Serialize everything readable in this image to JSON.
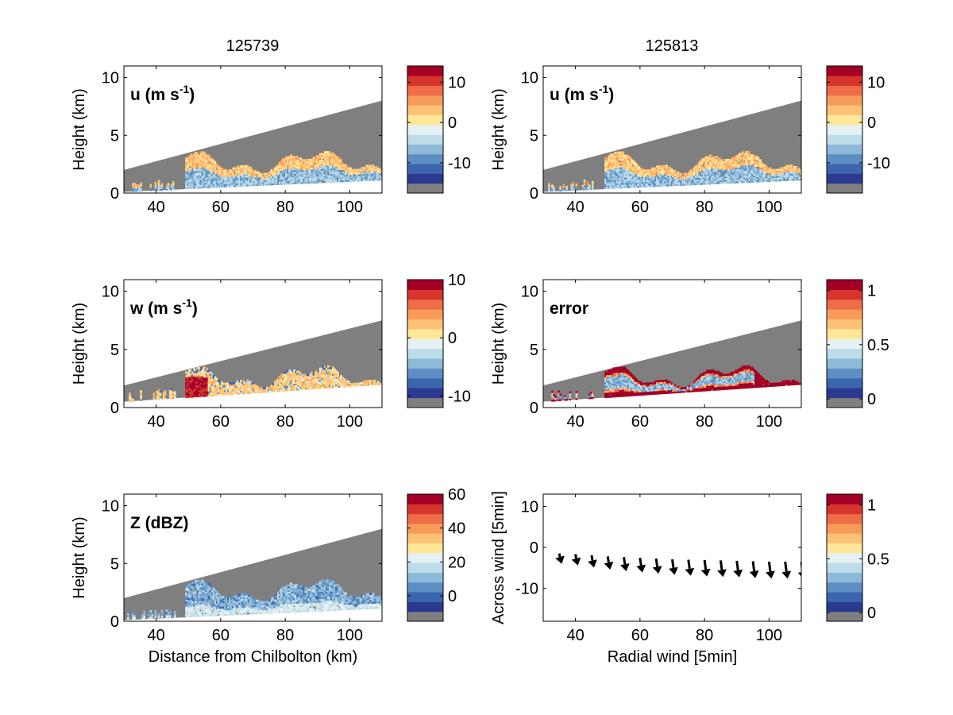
{
  "figure": {
    "column_titles": [
      "125739",
      "125813"
    ],
    "palette": [
      "#7f7f7f",
      "#2b3990",
      "#3b65ad",
      "#5d8fc4",
      "#8dbad9",
      "#bcdcea",
      "#e6f1f3",
      "#ffe79a",
      "#fdc275",
      "#f99b58",
      "#ee6c47",
      "#d5352d",
      "#a50026"
    ],
    "background_fill": "#7f7f7f"
  },
  "chart_data": [
    {
      "id": "u-left",
      "type": "heatmap",
      "column": 0,
      "row": 0,
      "label_main": "u (m s",
      "label_sup": "-1",
      "label_tail": ")",
      "ylabel": "Height (km)",
      "xlabel": "",
      "xlim": [
        30,
        110
      ],
      "ylim": [
        0,
        11
      ],
      "xticks": [
        40,
        60,
        80,
        100
      ],
      "yticks": [
        0,
        5,
        10
      ],
      "beam_top": [
        [
          30,
          2.0
        ],
        [
          110,
          8.0
        ]
      ],
      "beam_bottom": [
        [
          30,
          0.1
        ],
        [
          110,
          1.1
        ]
      ],
      "colorbar": {
        "ticks": [
          10,
          0,
          -10
        ],
        "range": [
          -17.5,
          14
        ]
      }
    },
    {
      "id": "u-right",
      "type": "heatmap",
      "column": 1,
      "row": 0,
      "label_main": "u (m s",
      "label_sup": "-1",
      "label_tail": ")",
      "ylabel": "Height (km)",
      "xlabel": "",
      "xlim": [
        30,
        110
      ],
      "ylim": [
        0,
        11
      ],
      "xticks": [
        40,
        60,
        80,
        100
      ],
      "yticks": [
        0,
        5,
        10
      ],
      "beam_top": [
        [
          30,
          2.0
        ],
        [
          110,
          8.0
        ]
      ],
      "beam_bottom": [
        [
          30,
          0.1
        ],
        [
          110,
          1.1
        ]
      ],
      "colorbar": {
        "ticks": [
          10,
          0,
          -10
        ],
        "range": [
          -17.5,
          14
        ]
      }
    },
    {
      "id": "w-left",
      "type": "heatmap",
      "column": 0,
      "row": 1,
      "label_main": "w (m s",
      "label_sup": "-1",
      "label_tail": ")",
      "ylabel": "Height (km)",
      "xlabel": "",
      "xlim": [
        30,
        110
      ],
      "ylim": [
        0,
        11
      ],
      "xticks": [
        40,
        60,
        80,
        100
      ],
      "yticks": [
        0,
        5,
        10
      ],
      "beam_top": [
        [
          30,
          1.9
        ],
        [
          110,
          7.5
        ]
      ],
      "beam_bottom": [
        [
          30,
          0.5
        ],
        [
          110,
          2.0
        ]
      ],
      "colorbar": {
        "ticks": [
          10,
          0,
          -10
        ],
        "range": [
          -12,
          10
        ]
      }
    },
    {
      "id": "error-right",
      "type": "heatmap",
      "column": 1,
      "row": 1,
      "label_main": "error",
      "label_sup": "",
      "label_tail": "",
      "ylabel": "Height (km)",
      "xlabel": "",
      "xlim": [
        30,
        110
      ],
      "ylim": [
        0,
        11
      ],
      "xticks": [
        40,
        60,
        80,
        100
      ],
      "yticks": [
        0,
        5,
        10
      ],
      "beam_top": [
        [
          30,
          1.9
        ],
        [
          110,
          7.5
        ]
      ],
      "beam_bottom": [
        [
          30,
          0.5
        ],
        [
          110,
          2.0
        ]
      ],
      "colorbar": {
        "ticks": [
          1,
          0.5,
          0
        ],
        "range": [
          -0.08,
          1.1
        ]
      }
    },
    {
      "id": "z-left",
      "type": "heatmap",
      "column": 0,
      "row": 2,
      "label_main": "Z (dBZ)",
      "label_sup": "",
      "label_tail": "",
      "ylabel": "Height (km)",
      "xlabel": "Distance from Chilbolton (km)",
      "xlim": [
        30,
        110
      ],
      "ylim": [
        0,
        11
      ],
      "xticks": [
        40,
        60,
        80,
        100
      ],
      "yticks": [
        0,
        5,
        10
      ],
      "beam_top": [
        [
          30,
          2.0
        ],
        [
          110,
          8.0
        ]
      ],
      "beam_bottom": [
        [
          30,
          0.1
        ],
        [
          110,
          1.1
        ]
      ],
      "colorbar": {
        "ticks": [
          60,
          40,
          20,
          0
        ],
        "range": [
          -15,
          60
        ]
      }
    },
    {
      "id": "wind-right",
      "type": "scatter",
      "column": 1,
      "row": 2,
      "label_main": "",
      "label_sup": "",
      "label_tail": "",
      "ylabel": "Across wind [5min]",
      "xlabel": "Radial wind [5min]",
      "xlim": [
        30,
        110
      ],
      "ylim": [
        -18,
        13
      ],
      "xticks": [
        40,
        60,
        80,
        100
      ],
      "yticks": [
        10,
        0,
        -10
      ],
      "vectors": {
        "x": [
          35,
          40,
          45,
          50,
          55,
          60,
          65,
          70,
          75,
          80,
          85,
          90,
          95,
          100,
          105,
          110
        ],
        "y": [
          -1.8,
          -2.0,
          -2.3,
          -2.6,
          -2.8,
          -3.0,
          -3.2,
          -3.4,
          -3.5,
          -3.6,
          -3.7,
          -3.8,
          -3.9,
          -4.0,
          -4.0,
          -4.1
        ],
        "u": [
          0.3,
          0.3,
          0.3,
          0.3,
          0.3,
          0.3,
          0.3,
          0.3,
          0.3,
          0.3,
          0.3,
          0.3,
          0.3,
          0.3,
          0.3,
          0.3
        ],
        "v": [
          -2.2,
          -2.4,
          -2.6,
          -2.8,
          -3.0,
          -3.1,
          -3.2,
          -3.3,
          -3.4,
          -3.5,
          -3.5,
          -3.5,
          -3.6,
          -3.6,
          -3.6,
          -3.6
        ]
      },
      "colorbar": {
        "ticks": [
          1,
          0.5,
          0
        ],
        "range": [
          -0.08,
          1.1
        ]
      }
    }
  ]
}
